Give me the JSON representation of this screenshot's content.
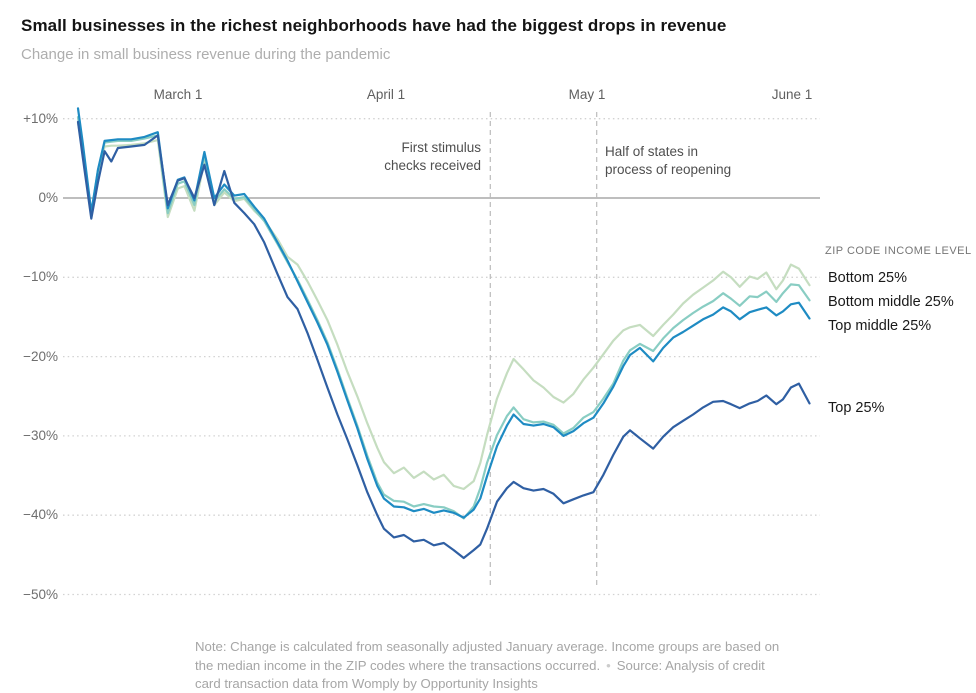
{
  "title": "Small businesses in the richest neighborhoods have had the biggest drops in revenue",
  "subtitle": "Change in small business revenue during the pandemic",
  "x_axis": {
    "labels": [
      "March 1",
      "April 1",
      "May 1",
      "June 1"
    ],
    "label_days": [
      15,
      46,
      76,
      107
    ]
  },
  "y_axis": {
    "labels": [
      "+10%",
      "0%",
      "−10%",
      "−20%",
      "−30%",
      "−40%",
      "−50%"
    ],
    "values": [
      10,
      0,
      -10,
      -20,
      -30,
      -40,
      -50
    ]
  },
  "annotations": [
    {
      "lines": [
        "First stimulus",
        "checks received"
      ],
      "day": 62,
      "align": "right"
    },
    {
      "lines": [
        "Half of states in",
        "process of reopening"
      ],
      "day": 78,
      "align": "left"
    }
  ],
  "legend": {
    "header": "ZIP CODE INCOME LEVEL",
    "items": [
      {
        "label": "Bottom 25%"
      },
      {
        "label": "Bottom middle 25%"
      },
      {
        "label": "Top middle 25%"
      },
      {
        "label": "Top 25%"
      }
    ]
  },
  "note": {
    "note_text": "Note: Change is calculated from seasonally adjusted January average. Income groups are based on the median income in the ZIP codes where the transactions occurred.",
    "separator": "•",
    "source_text": "Source: Analysis of credit card transaction data from Womply by Opportunity Insights"
  },
  "colors": {
    "bottom25": "#c5ddc0",
    "bottom_middle25": "#89cdc3",
    "top_middle25": "#1e8bc3",
    "top25": "#2f5fa3",
    "zero_line": "#a8a8a8",
    "grid_dotted": "#d2d2d2",
    "dashed_vline": "#bcbcbc"
  },
  "chart_data": {
    "type": "line",
    "title": "Change in small business revenue during the pandemic",
    "x_unit": "days since Feb 15, 2020",
    "x_ticks": [
      {
        "label": "March 1",
        "day": 15
      },
      {
        "label": "April 1",
        "day": 46
      },
      {
        "label": "May 1",
        "day": 76
      },
      {
        "label": "June 1",
        "day": 107
      }
    ],
    "y_ticks": [
      10,
      0,
      -10,
      -20,
      -30,
      -40,
      -50
    ],
    "ylim": [
      -52,
      13
    ],
    "grid": "dotted horizontal, solid zero line",
    "legend_position": "right of line ends",
    "x": [
      0,
      0.7,
      2,
      3,
      4,
      5,
      6,
      8,
      10,
      12,
      13.5,
      15,
      16,
      17.5,
      19,
      20.5,
      22,
      23.5,
      25,
      26.5,
      28,
      30,
      31.5,
      33,
      34.5,
      36,
      37.5,
      39,
      40.5,
      42,
      43.5,
      45,
      46,
      47.5,
      49,
      50.5,
      52,
      53.5,
      55,
      56.5,
      58,
      59.5,
      60.5,
      61.5,
      63,
      64.5,
      65.5,
      67,
      68.5,
      70,
      71.5,
      73,
      74.5,
      76,
      77.5,
      79,
      80.5,
      82,
      83,
      84.5,
      86.5,
      88,
      89.5,
      91,
      92.5,
      94,
      95.5,
      97,
      98.2,
      99.5,
      101,
      102.2,
      103.5,
      105,
      106,
      107.2,
      108.4,
      110
    ],
    "series": [
      {
        "name": "Bottom 25%",
        "color": "#c5ddc0",
        "values": [
          9.5,
          6.0,
          -2.3,
          3.0,
          6.5,
          6.6,
          6.6,
          6.7,
          6.9,
          7.3,
          -2.4,
          1.2,
          1.5,
          -1.6,
          4.7,
          -0.9,
          0.7,
          -0.4,
          -0.1,
          -1.6,
          -2.8,
          -5.2,
          -7.4,
          -8.4,
          -10.5,
          -12.9,
          -15.4,
          -18.5,
          -21.9,
          -25.0,
          -28.4,
          -31.5,
          -33.3,
          -34.7,
          -34.0,
          -35.3,
          -34.5,
          -35.5,
          -34.9,
          -36.3,
          -36.7,
          -35.7,
          -33.4,
          -29.9,
          -25.3,
          -22.1,
          -20.3,
          -21.6,
          -23.0,
          -23.9,
          -25.1,
          -25.8,
          -24.7,
          -22.9,
          -21.4,
          -19.7,
          -18.0,
          -16.7,
          -16.3,
          -16.0,
          -17.4,
          -16.0,
          -14.7,
          -13.3,
          -12.2,
          -11.3,
          -10.4,
          -9.3,
          -10.0,
          -11.2,
          -9.9,
          -10.2,
          -9.4,
          -11.5,
          -10.4,
          -8.4,
          -8.9,
          -11.0
        ]
      },
      {
        "name": "Bottom middle 25%",
        "color": "#89cdc3",
        "values": [
          10.2,
          6.5,
          -2.0,
          3.5,
          7.0,
          7.1,
          7.2,
          7.2,
          7.5,
          7.9,
          -1.9,
          1.8,
          2.1,
          -0.9,
          5.4,
          -0.4,
          1.1,
          -0.1,
          0.1,
          -1.4,
          -2.9,
          -5.8,
          -8.1,
          -10.3,
          -12.8,
          -15.4,
          -18.2,
          -21.6,
          -25.2,
          -28.7,
          -32.5,
          -35.9,
          -37.4,
          -38.2,
          -38.3,
          -38.9,
          -38.6,
          -38.9,
          -39.0,
          -39.5,
          -40.4,
          -38.9,
          -36.6,
          -33.4,
          -29.9,
          -27.5,
          -26.4,
          -27.9,
          -28.3,
          -28.2,
          -28.6,
          -29.7,
          -29.0,
          -27.7,
          -27.0,
          -25.3,
          -23.4,
          -20.5,
          -19.2,
          -18.4,
          -19.3,
          -17.7,
          -16.4,
          -15.4,
          -14.5,
          -13.7,
          -13.0,
          -12.0,
          -12.7,
          -13.6,
          -12.4,
          -12.5,
          -11.8,
          -13.1,
          -12.0,
          -10.9,
          -11.0,
          -12.9
        ]
      },
      {
        "name": "Top middle 25%",
        "color": "#1e8bc3",
        "values": [
          11.3,
          7.0,
          -1.8,
          3.6,
          7.2,
          7.3,
          7.4,
          7.4,
          7.7,
          8.3,
          -1.3,
          2.3,
          2.6,
          -0.3,
          5.8,
          0.0,
          1.7,
          0.3,
          0.5,
          -1.1,
          -2.6,
          -5.6,
          -7.9,
          -10.5,
          -13.1,
          -15.7,
          -18.5,
          -21.9,
          -25.5,
          -29.0,
          -32.9,
          -36.3,
          -37.9,
          -38.9,
          -39.0,
          -39.5,
          -39.2,
          -39.7,
          -39.4,
          -39.7,
          -40.3,
          -39.3,
          -37.9,
          -35.1,
          -31.3,
          -28.7,
          -27.3,
          -28.5,
          -28.7,
          -28.5,
          -28.9,
          -30.0,
          -29.4,
          -28.4,
          -27.7,
          -25.9,
          -23.8,
          -21.2,
          -19.8,
          -18.9,
          -20.6,
          -18.9,
          -17.6,
          -16.9,
          -16.1,
          -15.3,
          -14.7,
          -13.8,
          -14.3,
          -15.3,
          -14.4,
          -14.1,
          -13.8,
          -14.8,
          -14.3,
          -13.4,
          -13.2,
          -15.2
        ]
      },
      {
        "name": "Top 25%",
        "color": "#2f5fa3",
        "values": [
          9.6,
          5.2,
          -2.6,
          2.0,
          5.9,
          4.6,
          6.3,
          6.5,
          6.7,
          7.9,
          -0.9,
          2.2,
          2.5,
          0.0,
          4.2,
          -0.9,
          3.4,
          -0.6,
          -1.9,
          -3.3,
          -5.6,
          -9.6,
          -12.5,
          -14.0,
          -17.0,
          -20.4,
          -23.9,
          -27.3,
          -30.4,
          -33.7,
          -37.1,
          -40.0,
          -41.7,
          -42.8,
          -42.5,
          -43.3,
          -43.1,
          -43.8,
          -43.5,
          -44.4,
          -45.4,
          -44.4,
          -43.7,
          -41.7,
          -38.3,
          -36.6,
          -35.8,
          -36.6,
          -36.9,
          -36.7,
          -37.3,
          -38.5,
          -38.0,
          -37.5,
          -37.1,
          -34.9,
          -32.4,
          -30.1,
          -29.3,
          -30.3,
          -31.6,
          -30.1,
          -28.9,
          -28.1,
          -27.3,
          -26.4,
          -25.7,
          -25.6,
          -26.0,
          -26.5,
          -25.9,
          -25.6,
          -24.9,
          -26.0,
          -25.4,
          -23.9,
          -23.4,
          -25.9
        ]
      }
    ]
  }
}
